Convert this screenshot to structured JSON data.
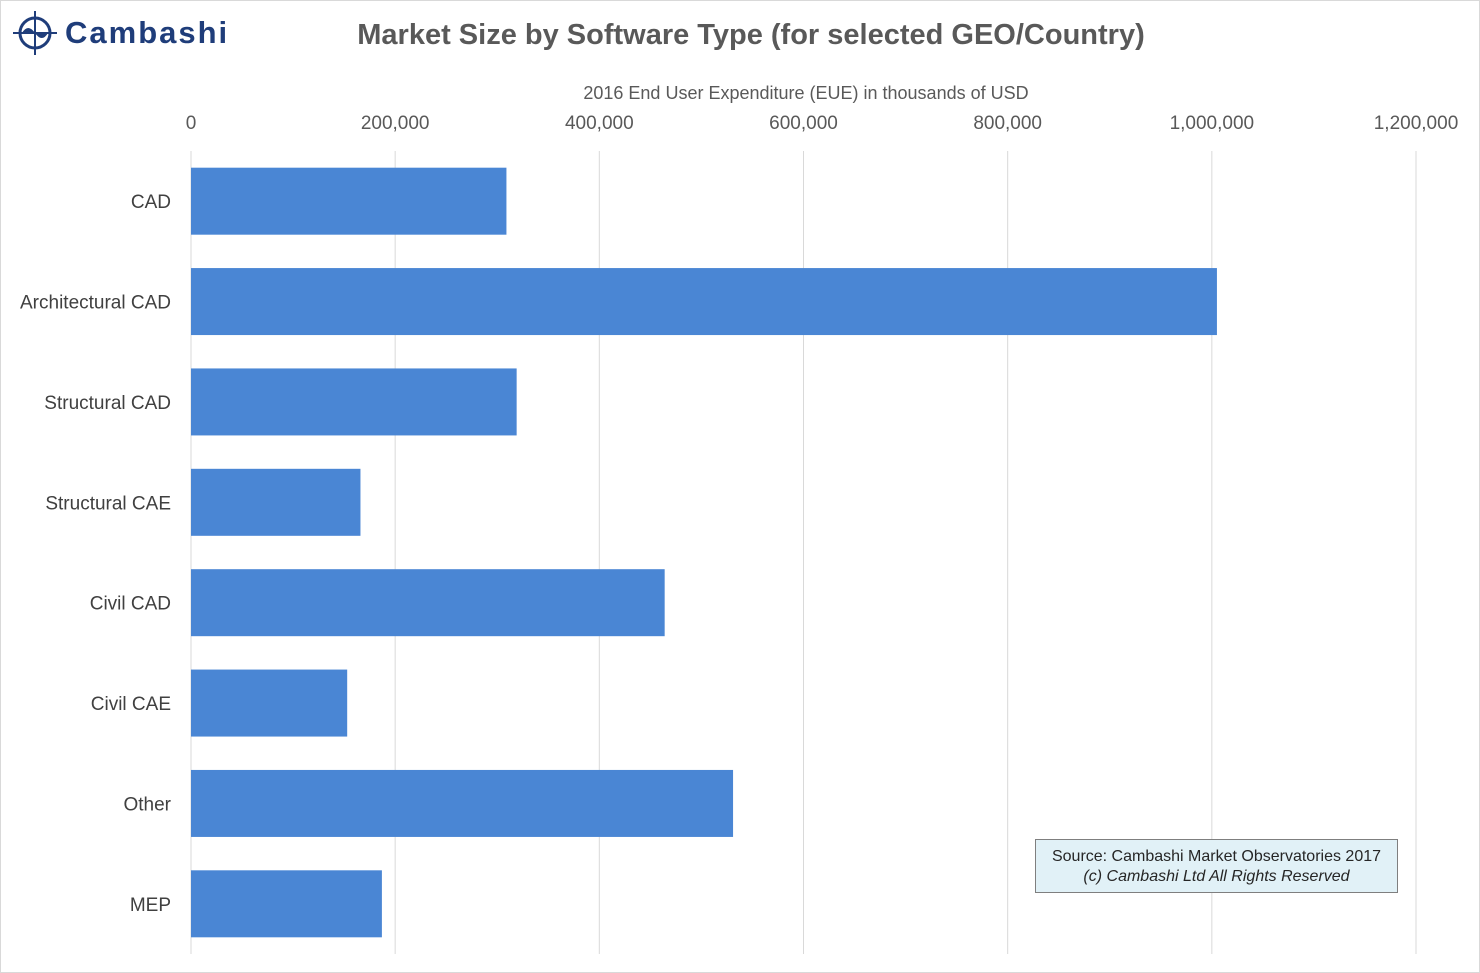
{
  "logo": {
    "text": "Cambashi"
  },
  "colors": {
    "bar": "#4a86d4",
    "grid": "#d9d9d9"
  },
  "chart_data": {
    "type": "bar",
    "orientation": "horizontal",
    "title": "Market Size by Software Type (for selected GEO/Country)",
    "xlabel": "2016 End User Expenditure (EUE) in thousands of USD",
    "ylabel": "",
    "xlim": [
      0,
      1200000
    ],
    "ticks": [
      0,
      200000,
      400000,
      600000,
      800000,
      1000000,
      1200000
    ],
    "tick_labels": [
      "0",
      "200,000",
      "400,000",
      "600,000",
      "800,000",
      "1,000,000",
      "1,200,000"
    ],
    "categories": [
      "CAD",
      "Architectural CAD",
      "Structural CAD",
      "Structural CAE",
      "Civil CAD",
      "Civil CAE",
      "Other",
      "MEP"
    ],
    "values": [
      309000,
      1005000,
      319000,
      166000,
      464000,
      153000,
      531000,
      187000
    ],
    "grid": true,
    "legend": "none"
  },
  "source": {
    "line1": "Source: Cambashi Market Observatories 2017",
    "line2": "(c) Cambashi Ltd All Rights Reserved"
  }
}
